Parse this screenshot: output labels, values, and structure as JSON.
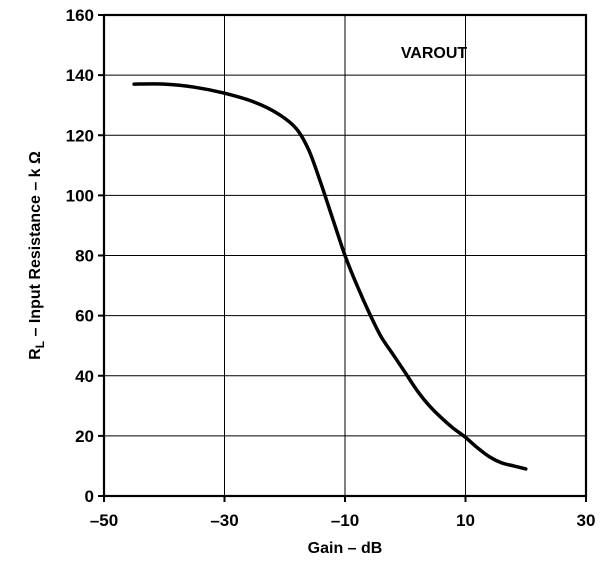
{
  "chart_data": {
    "type": "line",
    "title": "",
    "xlabel": "Gain – dB",
    "ylabel": {
      "prefix": "R",
      "subscript": "L",
      "suffix": " – Input Resistance – k Ω"
    },
    "annotation": "VAROUT",
    "xlim": [
      -50,
      30
    ],
    "ylim": [
      0,
      160
    ],
    "x_ticks": [
      -50,
      -30,
      -10,
      10,
      30
    ],
    "x_tick_labels": [
      "–50",
      "–30",
      "–10",
      "10",
      "30"
    ],
    "y_ticks": [
      0,
      20,
      40,
      60,
      80,
      100,
      120,
      140,
      160
    ],
    "y_tick_labels": [
      "0",
      "20",
      "40",
      "60",
      "80",
      "100",
      "120",
      "140",
      "160"
    ],
    "grid": true,
    "series": [
      {
        "color": "#000000",
        "x": [
          -45,
          -40,
          -35,
          -30,
          -25,
          -21,
          -18,
          -16,
          -14,
          -12,
          -10,
          -8,
          -6,
          -4,
          -2,
          0,
          2,
          4,
          6,
          8,
          10,
          12,
          14,
          16,
          18,
          20
        ],
        "y": [
          137,
          137,
          136,
          134,
          131,
          127,
          122,
          115,
          104,
          92,
          80,
          70,
          61,
          53,
          47,
          41,
          35,
          30,
          26,
          22.5,
          19.5,
          16,
          13,
          11,
          10,
          9
        ]
      }
    ]
  }
}
